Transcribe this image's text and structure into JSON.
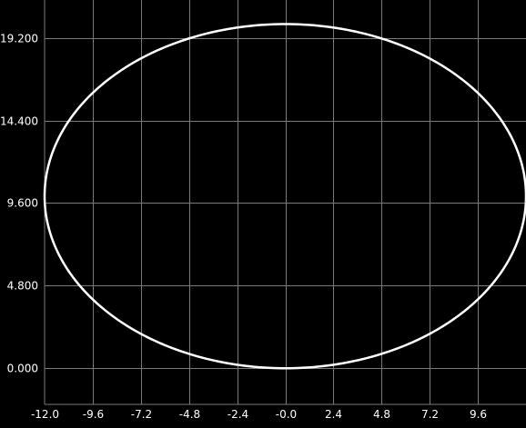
{
  "chart_data": {
    "type": "line",
    "title": "",
    "xlabel": "",
    "ylabel": "",
    "xlim": [
      -12.0,
      12.0
    ],
    "ylim": [
      -2.1,
      21.4
    ],
    "grid": true,
    "background_color": "#000000",
    "grid_color": "#7a7a7a",
    "line_color": "#ffffff",
    "text_color": "#ffffff",
    "x_ticks": [
      -12.0,
      -9.6,
      -7.2,
      -4.8,
      -2.4,
      0.0,
      2.4,
      4.8,
      7.2,
      9.6
    ],
    "x_tick_labels": [
      "-12.0",
      "-9.6",
      "-7.2",
      "-4.8",
      "-2.4",
      "-0.0",
      "2.4",
      "4.8",
      "7.2",
      "9.6"
    ],
    "y_ticks": [
      0.0,
      4.8,
      9.6,
      14.4,
      19.2
    ],
    "y_tick_labels": [
      "0.000",
      "4.800",
      "9.600",
      "14.400",
      "19.200"
    ],
    "series": [
      {
        "shape": "ellipse",
        "center_x": 0.0,
        "center_y": 10.0,
        "radius_x": 12.0,
        "radius_y": 10.0
      }
    ]
  }
}
